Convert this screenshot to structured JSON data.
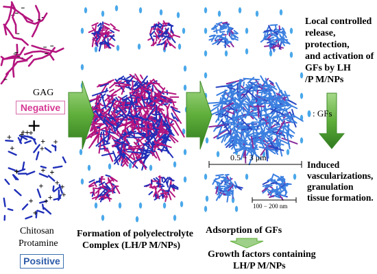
{
  "left": {
    "gag_label": "GAG",
    "negative_label": "Negative",
    "plus_sign": "+",
    "chitosan_label": "Chitosan",
    "protamine_label": "Protamine",
    "positive_label": "Positive"
  },
  "middle": {
    "caption_line1": "Formation of polyelectrolyte",
    "caption_line2": "Complex (LH/P M/NPs)"
  },
  "right": {
    "top_text": [
      "Local controlled",
      "release,",
      "protection,",
      "and activation of",
      "GFs by LH",
      "/P M/NPs"
    ],
    "gfs_legend": ": GFs",
    "size_label": "0.5 − 3   μm",
    "bottom_text": [
      "Induced",
      "vascularizations,",
      "granulation",
      "tissue formation."
    ],
    "small_size_label": "100 − 200 nm",
    "adsorption_label": "Adsorption of GFs",
    "result_line1": "Growth factors containing",
    "result_line2": "LH/P M/NPs"
  },
  "colors": {
    "gag_strand": "#b4147e",
    "chitosan_strand": "#1f2fb8",
    "gf_dot": "#4aa8ea",
    "arrow_green": "#6db33f",
    "arrow_green_dark": "#3f8a2a",
    "negative_border": "#d86aa8",
    "negative_text": "#d63894",
    "positive_border": "#3a6fb0",
    "positive_text": "#2b5aa8",
    "small_arrow_fill": "#9fd08a"
  }
}
